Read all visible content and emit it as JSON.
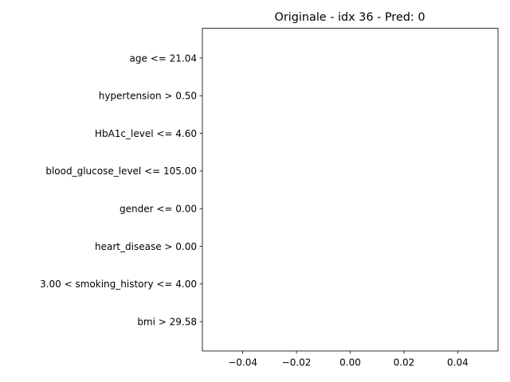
{
  "chart_data": {
    "type": "bar",
    "orientation": "horizontal",
    "title": "Originale - idx 36 - Pred: 0",
    "xlabel": "",
    "ylabel": "",
    "categories": [
      "age <= 21.04",
      "hypertension > 0.50",
      "HbA1c_level <= 4.60",
      "blood_glucose_level <= 105.00",
      "gender <= 0.00",
      "heart_disease > 0.00",
      "3.00 < smoking_history <= 4.00",
      "bmi > 29.58"
    ],
    "values": [
      0,
      0,
      0,
      0,
      0,
      0,
      0,
      0
    ],
    "xlim": [
      -0.055,
      0.055
    ],
    "xticks": [
      -0.04,
      -0.02,
      0.0,
      0.02,
      0.04
    ],
    "xtick_labels": [
      "−0.04",
      "−0.02",
      "0.00",
      "0.02",
      "0.04"
    ],
    "grid": false,
    "colors": {
      "frame": "#000000",
      "background": "#ffffff",
      "bar": "#1f77b4"
    }
  }
}
